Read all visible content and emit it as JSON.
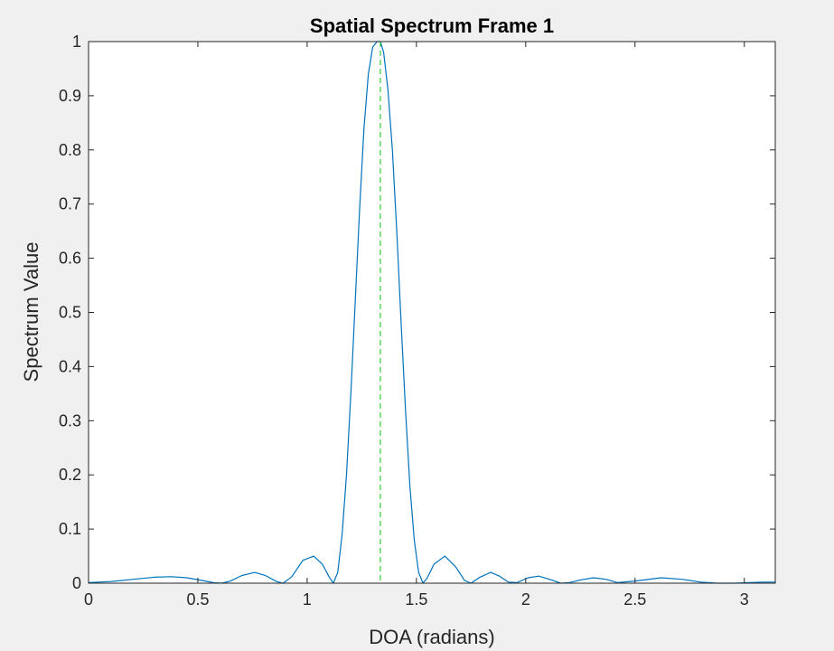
{
  "chart_data": {
    "type": "line",
    "title": "Spatial Spectrum Frame 1",
    "xlabel": "DOA (radians)",
    "ylabel": "Spectrum Value",
    "xlim": [
      0,
      3.1416
    ],
    "ylim": [
      0,
      1
    ],
    "grid": false,
    "legend": "none",
    "x_ticks": [
      0,
      0.5,
      1,
      1.5,
      2,
      2.5,
      3
    ],
    "x_tick_labels": [
      "0",
      "0.5",
      "1",
      "1.5",
      "2",
      "2.5",
      "3"
    ],
    "y_ticks": [
      0,
      0.1,
      0.2,
      0.3,
      0.4,
      0.5,
      0.6,
      0.7,
      0.8,
      0.9,
      1
    ],
    "y_tick_labels": [
      "0",
      "0.1",
      "0.2",
      "0.3",
      "0.4",
      "0.5",
      "0.6",
      "0.7",
      "0.8",
      "0.9",
      "1"
    ],
    "series": [
      {
        "type": "line",
        "color": "#0072bd",
        "x": [
          0,
          0.1,
          0.2,
          0.3,
          0.38,
          0.45,
          0.52,
          0.57,
          0.61,
          0.65,
          0.7,
          0.76,
          0.81,
          0.86,
          0.89,
          0.93,
          0.98,
          1.03,
          1.07,
          1.1,
          1.12,
          1.14,
          1.16,
          1.18,
          1.2,
          1.22,
          1.24,
          1.26,
          1.28,
          1.3,
          1.32,
          1.335,
          1.35,
          1.37,
          1.39,
          1.41,
          1.43,
          1.45,
          1.47,
          1.49,
          1.51,
          1.53,
          1.55,
          1.58,
          1.63,
          1.68,
          1.72,
          1.75,
          1.79,
          1.84,
          1.88,
          1.92,
          1.96,
          2.01,
          2.06,
          2.11,
          2.16,
          2.2,
          2.25,
          2.31,
          2.37,
          2.42,
          2.5,
          2.62,
          2.72,
          2.8,
          2.88,
          2.95,
          3.02,
          3.08,
          3.1416
        ],
        "y": [
          0.001,
          0.003,
          0.007,
          0.011,
          0.012,
          0.01,
          0.005,
          0.001,
          0.0,
          0.004,
          0.014,
          0.02,
          0.014,
          0.003,
          0.0,
          0.012,
          0.042,
          0.05,
          0.035,
          0.012,
          0.0,
          0.02,
          0.09,
          0.2,
          0.35,
          0.52,
          0.69,
          0.84,
          0.94,
          0.99,
          1.0,
          1.0,
          0.98,
          0.91,
          0.8,
          0.65,
          0.48,
          0.32,
          0.18,
          0.08,
          0.02,
          0.0,
          0.01,
          0.035,
          0.05,
          0.03,
          0.005,
          0.0,
          0.011,
          0.02,
          0.013,
          0.002,
          0.001,
          0.01,
          0.013,
          0.007,
          0.0,
          0.001,
          0.006,
          0.01,
          0.007,
          0.001,
          0.004,
          0.01,
          0.007,
          0.002,
          0.0,
          0.0,
          0.001,
          0.002,
          0.002
        ]
      },
      {
        "type": "vline",
        "style": "dashed",
        "color": "#33cc33",
        "x": 1.335
      }
    ]
  }
}
